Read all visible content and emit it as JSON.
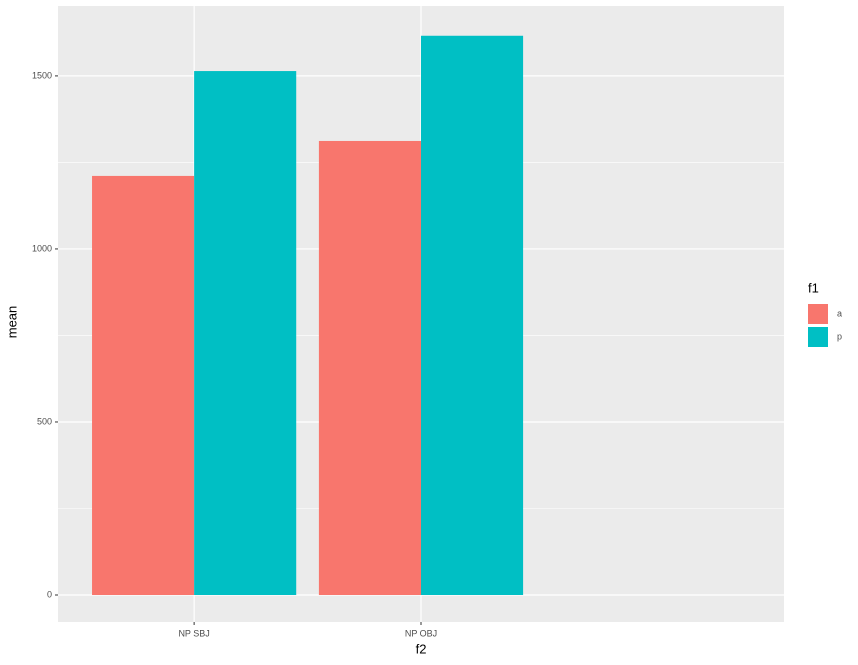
{
  "chart_data": {
    "type": "bar",
    "x_label": "f2",
    "y_label": "mean",
    "categories": [
      "NP SBJ",
      "NP OBJ"
    ],
    "legend_title": "f1",
    "series": [
      {
        "name": "a",
        "color": "#f8766d",
        "values": [
          1211,
          1312
        ]
      },
      {
        "name": "p",
        "color": "#00bfc4",
        "values": [
          1514,
          1616
        ]
      }
    ],
    "ylim": [
      -78,
      1702
    ],
    "yticks": [
      0,
      500,
      1000,
      1500
    ],
    "y_minor_grid": [
      250,
      750,
      1250
    ],
    "grid": true,
    "legend": "right"
  }
}
